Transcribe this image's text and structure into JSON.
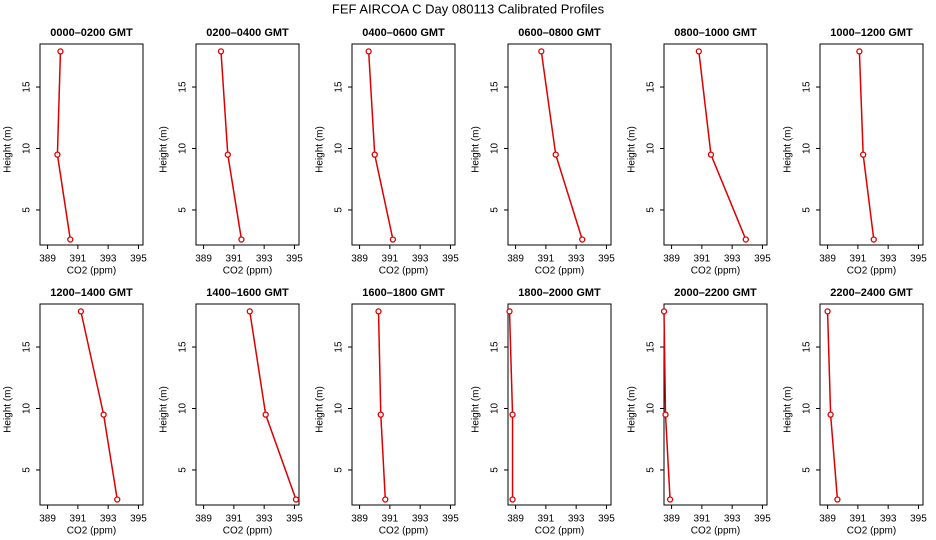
{
  "title": "FEF AIRCOA C  Day 080113  Calibrated Profiles",
  "chart_data": [
    {
      "type": "line",
      "title": "0000–0200 GMT",
      "xlabel": "CO2 (ppm)",
      "ylabel": "Height (m)",
      "color": "#dd0000",
      "x": [
        390.5,
        389.65,
        389.85
      ],
      "values": [
        2.6,
        9.5,
        17.9
      ],
      "xlim": [
        388.5,
        395.3
      ],
      "ylim": [
        2.15,
        18.5
      ],
      "xticks": [
        389,
        391,
        393,
        395
      ],
      "yticks": [
        5,
        10,
        15
      ]
    },
    {
      "type": "line",
      "title": "0200–0400 GMT",
      "xlabel": "CO2 (ppm)",
      "ylabel": "Height (m)",
      "color": "#dd0000",
      "x": [
        391.5,
        390.6,
        390.15
      ],
      "values": [
        2.6,
        9.5,
        17.9
      ],
      "xlim": [
        388.5,
        395.3
      ],
      "ylim": [
        2.15,
        18.5
      ],
      "xticks": [
        389,
        391,
        393,
        395
      ],
      "yticks": [
        5,
        10,
        15
      ]
    },
    {
      "type": "line",
      "title": "0400–0600 GMT",
      "xlabel": "CO2 (ppm)",
      "ylabel": "Height (m)",
      "color": "#dd0000",
      "x": [
        391.2,
        390.0,
        389.6
      ],
      "values": [
        2.6,
        9.5,
        17.9
      ],
      "xlim": [
        388.5,
        395.3
      ],
      "ylim": [
        2.15,
        18.5
      ],
      "xticks": [
        389,
        391,
        393,
        395
      ],
      "yticks": [
        5,
        10,
        15
      ]
    },
    {
      "type": "line",
      "title": "0600–0800 GMT",
      "xlabel": "CO2 (ppm)",
      "ylabel": "Height (m)",
      "color": "#dd0000",
      "x": [
        393.4,
        391.65,
        390.7
      ],
      "values": [
        2.6,
        9.5,
        17.9
      ],
      "xlim": [
        388.5,
        395.3
      ],
      "ylim": [
        2.15,
        18.5
      ],
      "xticks": [
        389,
        391,
        393,
        395
      ],
      "yticks": [
        5,
        10,
        15
      ]
    },
    {
      "type": "line",
      "title": "0800–1000 GMT",
      "xlabel": "CO2 (ppm)",
      "ylabel": "Height (m)",
      "color": "#dd0000",
      "x": [
        393.9,
        391.6,
        390.8
      ],
      "values": [
        2.6,
        9.5,
        17.9
      ],
      "xlim": [
        388.5,
        395.3
      ],
      "ylim": [
        2.15,
        18.5
      ],
      "xticks": [
        389,
        391,
        393,
        395
      ],
      "yticks": [
        5,
        10,
        15
      ]
    },
    {
      "type": "line",
      "title": "1000–1200 GMT",
      "xlabel": "CO2 (ppm)",
      "ylabel": "Height (m)",
      "color": "#dd0000",
      "x": [
        392.05,
        391.35,
        391.1
      ],
      "values": [
        2.6,
        9.5,
        17.9
      ],
      "xlim": [
        388.5,
        395.3
      ],
      "ylim": [
        2.15,
        18.5
      ],
      "xticks": [
        389,
        391,
        393,
        395
      ],
      "yticks": [
        5,
        10,
        15
      ]
    },
    {
      "type": "line",
      "title": "1200–1400 GMT",
      "xlabel": "CO2 (ppm)",
      "ylabel": "Height (m)",
      "color": "#dd0000",
      "x": [
        393.6,
        392.7,
        391.2
      ],
      "values": [
        2.6,
        9.5,
        17.9
      ],
      "xlim": [
        388.5,
        395.3
      ],
      "ylim": [
        2.15,
        18.5
      ],
      "xticks": [
        389,
        391,
        393,
        395
      ],
      "yticks": [
        5,
        10,
        15
      ]
    },
    {
      "type": "line",
      "title": "1400–1600 GMT",
      "xlabel": "CO2 (ppm)",
      "ylabel": "Height (m)",
      "color": "#dd0000",
      "x": [
        395.1,
        393.1,
        392.05
      ],
      "values": [
        2.6,
        9.5,
        17.9
      ],
      "xlim": [
        388.5,
        395.3
      ],
      "ylim": [
        2.15,
        18.5
      ],
      "xticks": [
        389,
        391,
        393,
        395
      ],
      "yticks": [
        5,
        10,
        15
      ]
    },
    {
      "type": "line",
      "title": "1600–1800 GMT",
      "xlabel": "CO2 (ppm)",
      "ylabel": "Height (m)",
      "color": "#dd0000",
      "x": [
        390.7,
        390.4,
        390.25
      ],
      "values": [
        2.6,
        9.5,
        17.9
      ],
      "xlim": [
        388.5,
        395.3
      ],
      "ylim": [
        2.15,
        18.5
      ],
      "xticks": [
        389,
        391,
        393,
        395
      ],
      "yticks": [
        5,
        10,
        15
      ]
    },
    {
      "type": "line",
      "title": "1800–2000 GMT",
      "xlabel": "CO2 (ppm)",
      "ylabel": "Height (m)",
      "color": "#dd0000",
      "x": [
        388.8,
        388.8,
        388.6
      ],
      "values": [
        2.6,
        9.5,
        17.9
      ],
      "xlim": [
        388.5,
        395.3
      ],
      "ylim": [
        2.15,
        18.5
      ],
      "xticks": [
        389,
        391,
        393,
        395
      ],
      "yticks": [
        5,
        10,
        15
      ]
    },
    {
      "type": "line",
      "title": "2000–2200 GMT",
      "xlabel": "CO2 (ppm)",
      "ylabel": "Height (m)",
      "color": "#dd0000",
      "x": [
        388.9,
        388.6,
        388.5
      ],
      "values": [
        2.6,
        9.5,
        17.9
      ],
      "xlim": [
        388.5,
        395.3
      ],
      "ylim": [
        2.15,
        18.5
      ],
      "xticks": [
        389,
        391,
        393,
        395
      ],
      "yticks": [
        5,
        10,
        15
      ]
    },
    {
      "type": "line",
      "title": "2200–2400 GMT",
      "xlabel": "CO2 (ppm)",
      "ylabel": "Height (m)",
      "color": "#dd0000",
      "x": [
        389.65,
        389.2,
        389.0
      ],
      "values": [
        2.6,
        9.5,
        17.9
      ],
      "xlim": [
        388.5,
        395.3
      ],
      "ylim": [
        2.15,
        18.5
      ],
      "xticks": [
        389,
        391,
        393,
        395
      ],
      "yticks": [
        5,
        10,
        15
      ]
    }
  ]
}
